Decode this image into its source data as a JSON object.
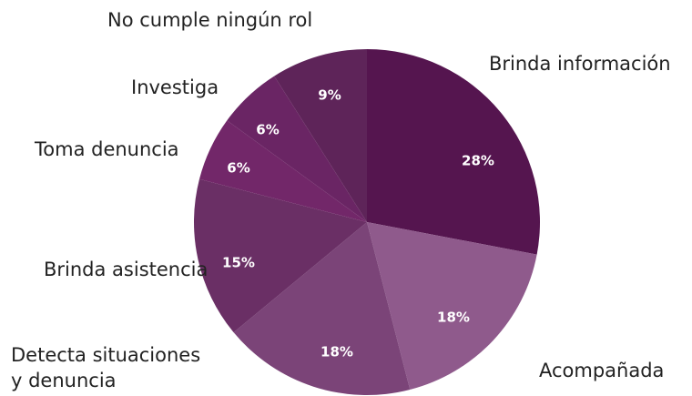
{
  "chart_data": {
    "type": "pie",
    "categories": [
      "Brinda información",
      "Acompañada",
      "Detecta situaciones\ny denuncia",
      "Brinda asistencia",
      "Toma denuncia",
      "Investiga",
      "No cumple ningún rol"
    ],
    "values": [
      28,
      18,
      18,
      15,
      6,
      6,
      9
    ],
    "value_labels": [
      "28%",
      "18%",
      "18%",
      "15%",
      "6%",
      "6%",
      "9%"
    ],
    "colors": [
      "#55154f",
      "#8f5a8c",
      "#7b4478",
      "#6a2f65",
      "#722769",
      "#6a2564",
      "#5e2459"
    ]
  }
}
